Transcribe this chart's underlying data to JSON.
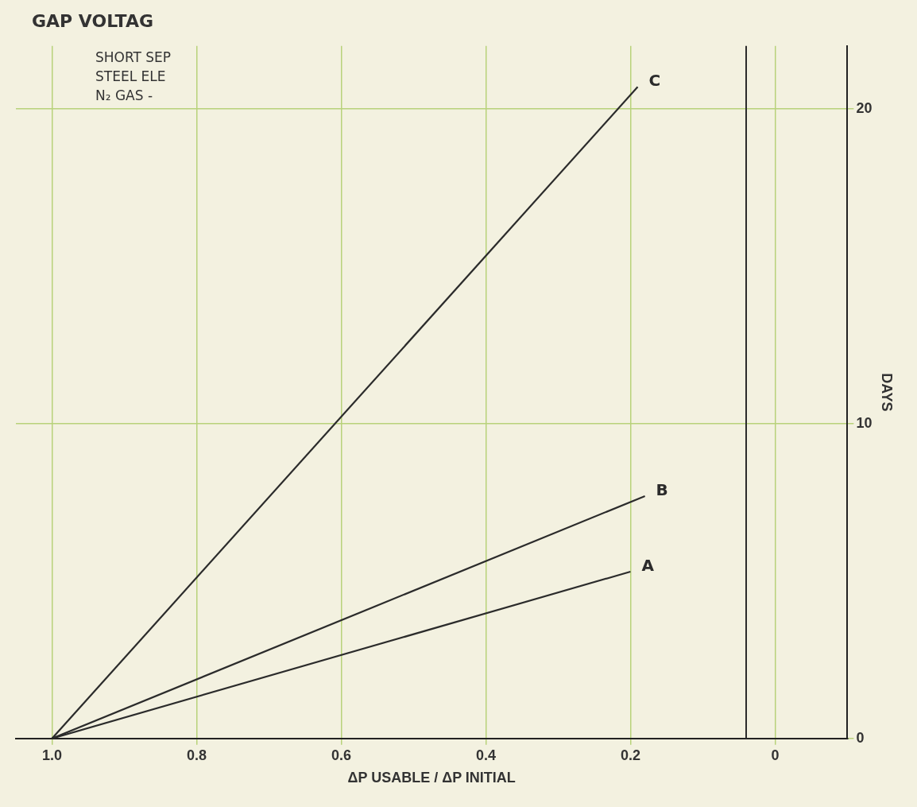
{
  "chart_data": {
    "type": "line",
    "title": "GAP VOLTAG",
    "xlabel": "ΔP USABLE / ΔP INITIAL",
    "ylabel": "DAYS",
    "annotations": [
      "SHORT SEP",
      "STEEL ELE",
      "N₂ GAS -"
    ],
    "series": [
      {
        "name": "A",
        "color": "#2b2b2b",
        "x": [
          1.0,
          0.2
        ],
        "values": [
          0,
          5.3
        ]
      },
      {
        "name": "B",
        "color": "#2b2b2b",
        "x": [
          1.0,
          0.18
        ],
        "values": [
          0,
          7.7
        ]
      },
      {
        "name": "C",
        "color": "#2b2b2b",
        "x": [
          1.0,
          0.19
        ],
        "values": [
          0,
          20.7
        ]
      }
    ],
    "xlim": [
      1.05,
      -0.1
    ],
    "xticks": [
      {
        "value": 1,
        "label": "1.0"
      },
      0.8,
      0.6,
      0.4,
      0.2,
      0
    ],
    "ylim": [
      0,
      22
    ],
    "yticks": [
      0,
      10,
      20
    ],
    "ref_lines": [
      {
        "axis": "x",
        "value": 0.04,
        "color": "#2b2b2b"
      }
    ],
    "grid": true,
    "legend": false,
    "marker": "none",
    "line_style": "solid"
  }
}
